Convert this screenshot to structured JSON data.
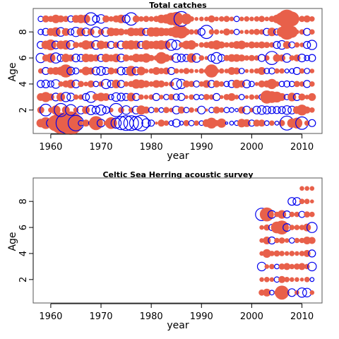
{
  "chart_data": [
    {
      "type": "scatter",
      "subtype": "bubble-residuals",
      "title": "Total catches",
      "xlabel": "year",
      "ylabel": "Age",
      "xlim": [
        1956.5,
        2014
      ],
      "ylim": [
        0.2,
        9.8
      ],
      "xticks": [
        "1960",
        "1970",
        "1980",
        "1990",
        "2000",
        "2010"
      ],
      "xtick_values": [
        1960,
        1970,
        1980,
        1990,
        2000,
        2010
      ],
      "yticks": [
        "2",
        "4",
        "6",
        "8"
      ],
      "ytick_values": [
        2,
        4,
        6,
        8
      ],
      "grid": false,
      "encoding": {
        "positive": "filled",
        "negative": "open"
      },
      "colors": {
        "positive": "#e8604a",
        "negative": "#0000ee"
      },
      "years": [
        1958,
        1959,
        1960,
        1961,
        1962,
        1963,
        1964,
        1965,
        1966,
        1967,
        1968,
        1969,
        1970,
        1971,
        1972,
        1973,
        1974,
        1975,
        1976,
        1977,
        1978,
        1979,
        1980,
        1981,
        1982,
        1983,
        1984,
        1985,
        1986,
        1987,
        1988,
        1989,
        1990,
        1991,
        1992,
        1993,
        1994,
        1995,
        1996,
        1997,
        1998,
        1999,
        2000,
        2001,
        2002,
        2003,
        2004,
        2005,
        2006,
        2007,
        2008,
        2009,
        2010,
        2011,
        2012
      ],
      "ages": [
        1,
        2,
        3,
        4,
        5,
        6,
        7,
        8,
        9
      ],
      "residuals": {
        "1": [
          0.55,
          0.75,
          -0.55,
          1.05,
          1.35,
          -1.25,
          1.5,
          -1.0,
          -0.35,
          0.45,
          -0.3,
          0.9,
          -0.5,
          0.3,
          0.75,
          -0.65,
          -0.85,
          -0.95,
          -0.95,
          -0.85,
          -1.0,
          -0.55,
          -0.4,
          0.2,
          0.45,
          0.35,
          -0.3,
          -0.5,
          -0.25,
          0.4,
          -0.35,
          0.35,
          -0.3,
          0.5,
          0.7,
          0.4,
          0.6,
          -0.15,
          -0.25,
          -0.3,
          0.55,
          0.5,
          -0.4,
          0.45,
          0.45,
          -0.3,
          0.35,
          -0.25,
          0.4,
          -0.9,
          0.6,
          0.7,
          -0.8,
          0.35,
          -0.45
        ],
        "2": [
          0.45,
          -0.75,
          0.35,
          0.6,
          -0.85,
          0.5,
          -0.7,
          0.35,
          -0.5,
          0.5,
          -0.6,
          -0.5,
          -0.65,
          -0.45,
          0.3,
          -0.85,
          0.4,
          -0.55,
          0.35,
          -0.5,
          0.6,
          0.45,
          -0.35,
          0.35,
          -0.3,
          0.4,
          0.3,
          -0.5,
          0.45,
          -0.35,
          0.35,
          0.25,
          -0.5,
          0.2,
          -0.35,
          0.45,
          0.35,
          -0.35,
          -0.3,
          -0.2,
          0.45,
          -0.5,
          0.3,
          -0.5,
          -0.55,
          -0.5,
          -0.45,
          -0.45,
          -0.45,
          -0.55,
          -0.5,
          0.5,
          0.7,
          0.45,
          0.35
        ],
        "3": [
          0.5,
          0.65,
          0.45,
          -0.5,
          0.55,
          -0.6,
          -0.5,
          0.35,
          0.35,
          -0.45,
          -0.7,
          0.45,
          0.55,
          0.5,
          -0.35,
          -0.55,
          -0.5,
          -0.45,
          0.55,
          -0.45,
          0.35,
          0.3,
          0.35,
          -0.45,
          0.3,
          -0.35,
          0.4,
          -0.4,
          -0.45,
          0.25,
          0.35,
          -0.35,
          -0.3,
          0.4,
          0.35,
          -0.45,
          0.25,
          0.4,
          0.5,
          0.3,
          -0.35,
          0.25,
          0.35,
          0.3,
          -0.35,
          0.85,
          0.75,
          0.7,
          0.5,
          -0.35,
          0.55,
          -0.45,
          0.45,
          0.3,
          0.5
        ],
        "4": [
          -0.45,
          -0.5,
          -0.4,
          -0.55,
          0.35,
          0.45,
          0.55,
          -0.5,
          0.4,
          0.3,
          0.45,
          -0.35,
          0.35,
          -0.6,
          -0.45,
          0.55,
          -0.45,
          0.35,
          0.4,
          0.6,
          0.55,
          0.45,
          0.35,
          0.5,
          0.45,
          0.3,
          0.35,
          -0.7,
          -0.6,
          0.45,
          0.4,
          -0.4,
          0.35,
          0.5,
          -0.45,
          0.45,
          0.35,
          -0.35,
          -0.45,
          0.55,
          0.45,
          -0.5,
          -0.35,
          0.25,
          0.45,
          0.45,
          0.65,
          0.35,
          -0.35,
          -0.4,
          -0.35,
          0.4,
          0.35,
          -0.45,
          0.35
        ],
        "5": [
          0.35,
          -0.45,
          0.45,
          0.5,
          0.55,
          0.85,
          -0.5,
          -0.4,
          0.25,
          0.55,
          0.45,
          -0.5,
          -0.55,
          -0.45,
          0.45,
          0.35,
          -0.5,
          -0.45,
          0.65,
          -0.5,
          0.55,
          0.3,
          0.35,
          0.5,
          0.4,
          0.45,
          -0.45,
          0.35,
          0.3,
          0.4,
          0.3,
          0.25,
          0.35,
          0.35,
          0.85,
          0.35,
          0.35,
          0.3,
          0.5,
          0.45,
          -0.35,
          0.25,
          0.3,
          0.35,
          0.5,
          -0.35,
          -0.4,
          0.35,
          0.35,
          -0.25,
          -0.3,
          -0.45,
          0.35,
          -0.35,
          0.3
        ],
        "6": [
          -0.6,
          0.45,
          0.6,
          -0.65,
          -0.45,
          0.55,
          0.45,
          -0.5,
          -0.45,
          0.55,
          0.5,
          0.45,
          -0.45,
          0.55,
          0.45,
          0.55,
          -0.5,
          0.45,
          0.35,
          0.55,
          0.5,
          0.6,
          0.4,
          0.35,
          0.75,
          0.5,
          0.35,
          -0.55,
          -0.5,
          -0.45,
          0.6,
          -0.55,
          0.35,
          0.25,
          -0.45,
          -0.7,
          -0.45,
          0.4,
          0.5,
          0.5,
          0.45,
          0.35,
          0.4,
          0.35,
          -0.45,
          0.35,
          -0.85,
          0.5,
          0.45,
          -0.55,
          0.35,
          0.45,
          -0.5,
          -0.35,
          -0.45
        ],
        "7": [
          -0.45,
          0.55,
          0.7,
          -0.5,
          0.55,
          0.6,
          -0.55,
          0.4,
          0.35,
          0.6,
          0.5,
          -0.55,
          0.55,
          0.45,
          -0.45,
          0.4,
          -0.5,
          0.55,
          0.6,
          0.55,
          -0.45,
          0.6,
          0.5,
          0.55,
          0.6,
          0.55,
          -0.7,
          -0.6,
          0.35,
          0.55,
          0.6,
          0.25,
          0.35,
          0.4,
          0.5,
          0.6,
          0.45,
          0.35,
          0.4,
          0.5,
          0.55,
          0.35,
          0.45,
          0.4,
          0.45,
          0.4,
          0.35,
          -0.45,
          -0.55,
          0.5,
          -0.4,
          0.35,
          0.3,
          -0.45,
          -0.6
        ],
        "8": [
          -0.35,
          -0.45,
          0.5,
          0.6,
          -0.55,
          0.5,
          -0.4,
          -0.6,
          0.55,
          -0.5,
          0.45,
          -0.65,
          0.4,
          -0.55,
          0.55,
          0.5,
          0.45,
          0.35,
          0.55,
          0.5,
          0.55,
          -0.45,
          0.6,
          0.6,
          0.55,
          0.5,
          0.55,
          0.75,
          0.85,
          0.45,
          0.35,
          0.35,
          -0.45,
          -0.85,
          0.35,
          0.35,
          0.25,
          0.45,
          0.3,
          -0.35,
          0.25,
          0.3,
          0.35,
          0.4,
          0.35,
          -0.45,
          0.55,
          -0.4,
          0.65,
          1.0,
          0.75,
          0.3,
          0.35,
          -0.45,
          0.35
        ],
        "9": [
          -0.35,
          0.45,
          0.4,
          0.55,
          0.45,
          0.4,
          -0.4,
          0.5,
          0.55,
          0.55,
          -0.8,
          -0.45,
          -0.55,
          0.45,
          0.35,
          0.45,
          0.55,
          -0.5,
          -0.8,
          0.45,
          0.35,
          0.4,
          0.35,
          0.4,
          0.55,
          0.6,
          0.8,
          0.9,
          -0.95,
          0.7,
          0.35,
          0.25,
          0.3,
          0.3,
          0.45,
          0.3,
          0.35,
          0.4,
          0.3,
          -0.35,
          0.3,
          0.35,
          0.3,
          0.35,
          0.4,
          0.3,
          0.4,
          0.55,
          0.85,
          1.2,
          0.95,
          0.35,
          0.4,
          0.45,
          0.35
        ]
      }
    },
    {
      "type": "scatter",
      "subtype": "bubble-residuals",
      "title": "Celtic Sea Herring acoustic survey",
      "xlabel": "year",
      "ylabel": "Age",
      "xlim": [
        1956.5,
        2014
      ],
      "ylim": [
        0.2,
        9.8
      ],
      "xticks": [
        "1960",
        "1970",
        "1980",
        "1990",
        "2000",
        "2010"
      ],
      "xtick_values": [
        1960,
        1970,
        1980,
        1990,
        2000,
        2010
      ],
      "yticks": [
        "2",
        "4",
        "6",
        "8"
      ],
      "ytick_values": [
        2,
        4,
        6,
        8
      ],
      "grid": false,
      "encoding": {
        "positive": "filled",
        "negative": "open"
      },
      "colors": {
        "positive": "#e8604a",
        "negative": "#0000ee"
      },
      "years": [
        2002,
        2003,
        2004,
        2005,
        2006,
        2007,
        2008,
        2009,
        2010,
        2011,
        2012
      ],
      "ages": [
        1,
        2,
        3,
        4,
        5,
        6,
        7,
        8,
        9
      ],
      "residuals": {
        "1": [
          0.4,
          0.5,
          -0.3,
          0.35,
          0.9,
          0.35,
          -0.5,
          0.3,
          -0.6,
          -0.55,
          0.3
        ],
        "2": [
          0.3,
          0.35,
          0.3,
          -0.35,
          0.45,
          0.35,
          0.3,
          0.3,
          0.25,
          0.35,
          -0.25
        ],
        "3": [
          -0.55,
          0.3,
          0.35,
          -0.3,
          0.4,
          0.45,
          0.35,
          0.4,
          0.45,
          0.35,
          -0.55
        ],
        "4": [
          0.3,
          0.55,
          0.35,
          0.4,
          0.35,
          0.3,
          0.35,
          0.3,
          0.35,
          0.45,
          -0.45
        ],
        "5": [
          0.3,
          0.5,
          -0.45,
          0.35,
          0.4,
          0.3,
          -0.35,
          0.35,
          0.35,
          0.5,
          0.45
        ],
        "6": [
          0.3,
          0.4,
          -0.4,
          0.75,
          0.9,
          -0.5,
          0.35,
          0.35,
          0.35,
          0.5,
          -0.65
        ],
        "7": [
          -0.8,
          0.9,
          -0.5,
          0.35,
          0.55,
          -0.45,
          0.35,
          0.35,
          -0.4,
          0.4,
          0.35
        ],
        "8": [
          0,
          0,
          0,
          0,
          0,
          0,
          -0.5,
          -0.5,
          0.35,
          0.35,
          0.25
        ],
        "9": [
          0,
          0,
          0,
          0,
          0,
          0,
          0,
          0,
          0.3,
          0.3,
          0.3
        ]
      }
    }
  ]
}
